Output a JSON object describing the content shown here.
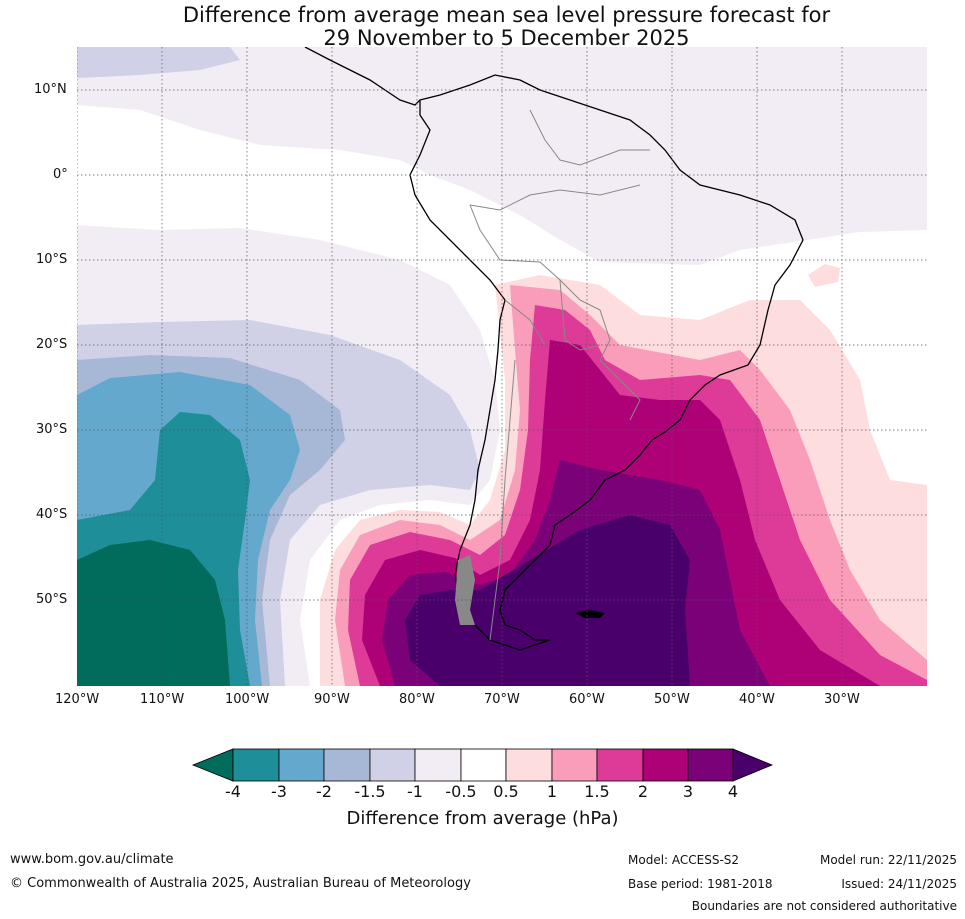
{
  "title": {
    "line1": "Difference from average mean sea level pressure forecast for",
    "line2": "29 November to 5 December 2025"
  },
  "map": {
    "region": "South America",
    "lat_labels": [
      "10°N",
      "0°",
      "10°S",
      "20°S",
      "30°S",
      "40°S",
      "50°S"
    ],
    "lon_labels": [
      "120°W",
      "110°W",
      "100°W",
      "90°W",
      "80°W",
      "70°W",
      "60°W",
      "50°W",
      "40°W",
      "30°W"
    ],
    "colors": {
      "neg4": "#016b5c",
      "neg3": "#1e8e98",
      "neg2": "#64a8cd",
      "neg15": "#a7b8d6",
      "neg1": "#d0d1e6",
      "neg05": "#f2ecf5",
      "zero": "#ffffff",
      "pos05": "#fdddde",
      "pos1": "#f99dbb",
      "pos15": "#de3a98",
      "pos2": "#ae0178",
      "pos3": "#7a0177",
      "pos4": "#49006a",
      "land_outline": "#000000",
      "border": "#888888"
    }
  },
  "colorbar": {
    "ticks": [
      "-4",
      "-3",
      "-2",
      "-1.5",
      "-1",
      "-0.5",
      "0.5",
      "1",
      "1.5",
      "2",
      "3",
      "4"
    ],
    "label": "Difference from average (hPa)"
  },
  "footer": {
    "website": "www.bom.gov.au/climate",
    "copyright": "© Commonwealth of Australia 2025, Australian Bureau of Meteorology",
    "model": "Model: ACCESS-S2",
    "base_period": "Base period: 1981-2018",
    "model_run": "Model run: 22/11/2025",
    "issued": "Issued: 24/11/2025",
    "disclaimer": "Boundaries are not considered authoritative"
  }
}
